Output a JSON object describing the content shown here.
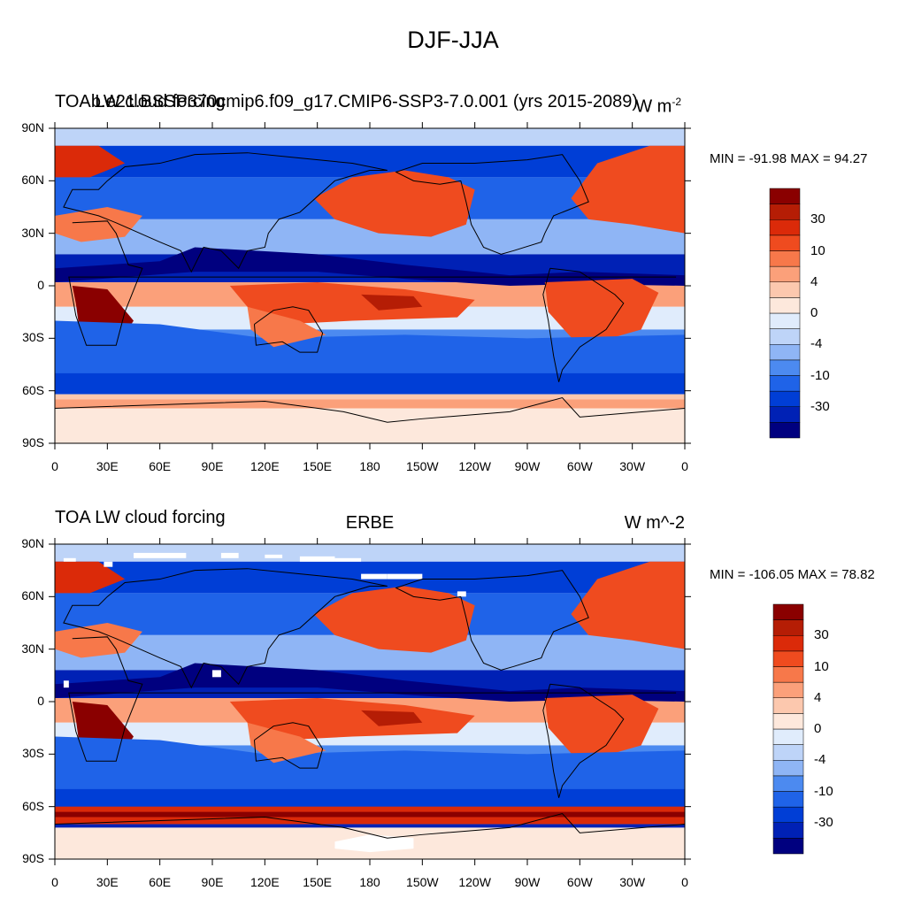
{
  "title": "DJF-JJA",
  "colors": [
    "#00007f",
    "#0021b5",
    "#003ed6",
    "#1f63e8",
    "#4c8af0",
    "#8fb5f5",
    "#bed4f8",
    "#e0ecfc",
    "#fde8dc",
    "#fcc8ae",
    "#fba07a",
    "#f7784a",
    "#ef4b1f",
    "#db2a09",
    "#b51d05",
    "#8a0000"
  ],
  "panels": [
    {
      "left_title": "TOA LW cloud forcing",
      "center_title": "b.e21.BSSP370cmip6.f09_g17.CMIP6-SSP3-7.0.001 (yrs 2015-2089)",
      "units": "W m",
      "units_sup": "-2",
      "min_label": "MIN = -91.98",
      "max_label": "MAX =  94.27"
    },
    {
      "left_title": "TOA LW cloud forcing",
      "center_title": "ERBE",
      "units": "W m^-2",
      "units_sup": "",
      "min_label": "MIN = -106.05",
      "max_label": "MAX =  78.82"
    }
  ],
  "lat_ticks": [
    "90N",
    "60N",
    "30N",
    "0",
    "30S",
    "60S",
    "90S"
  ],
  "lon_ticks": [
    "0",
    "30E",
    "60E",
    "90E",
    "120E",
    "150E",
    "180",
    "150W",
    "120W",
    "90W",
    "60W",
    "30W",
    "0"
  ],
  "colorbar_ticks": [
    "30",
    "10",
    "4",
    "0",
    "-4",
    "-10",
    "-30"
  ]
}
